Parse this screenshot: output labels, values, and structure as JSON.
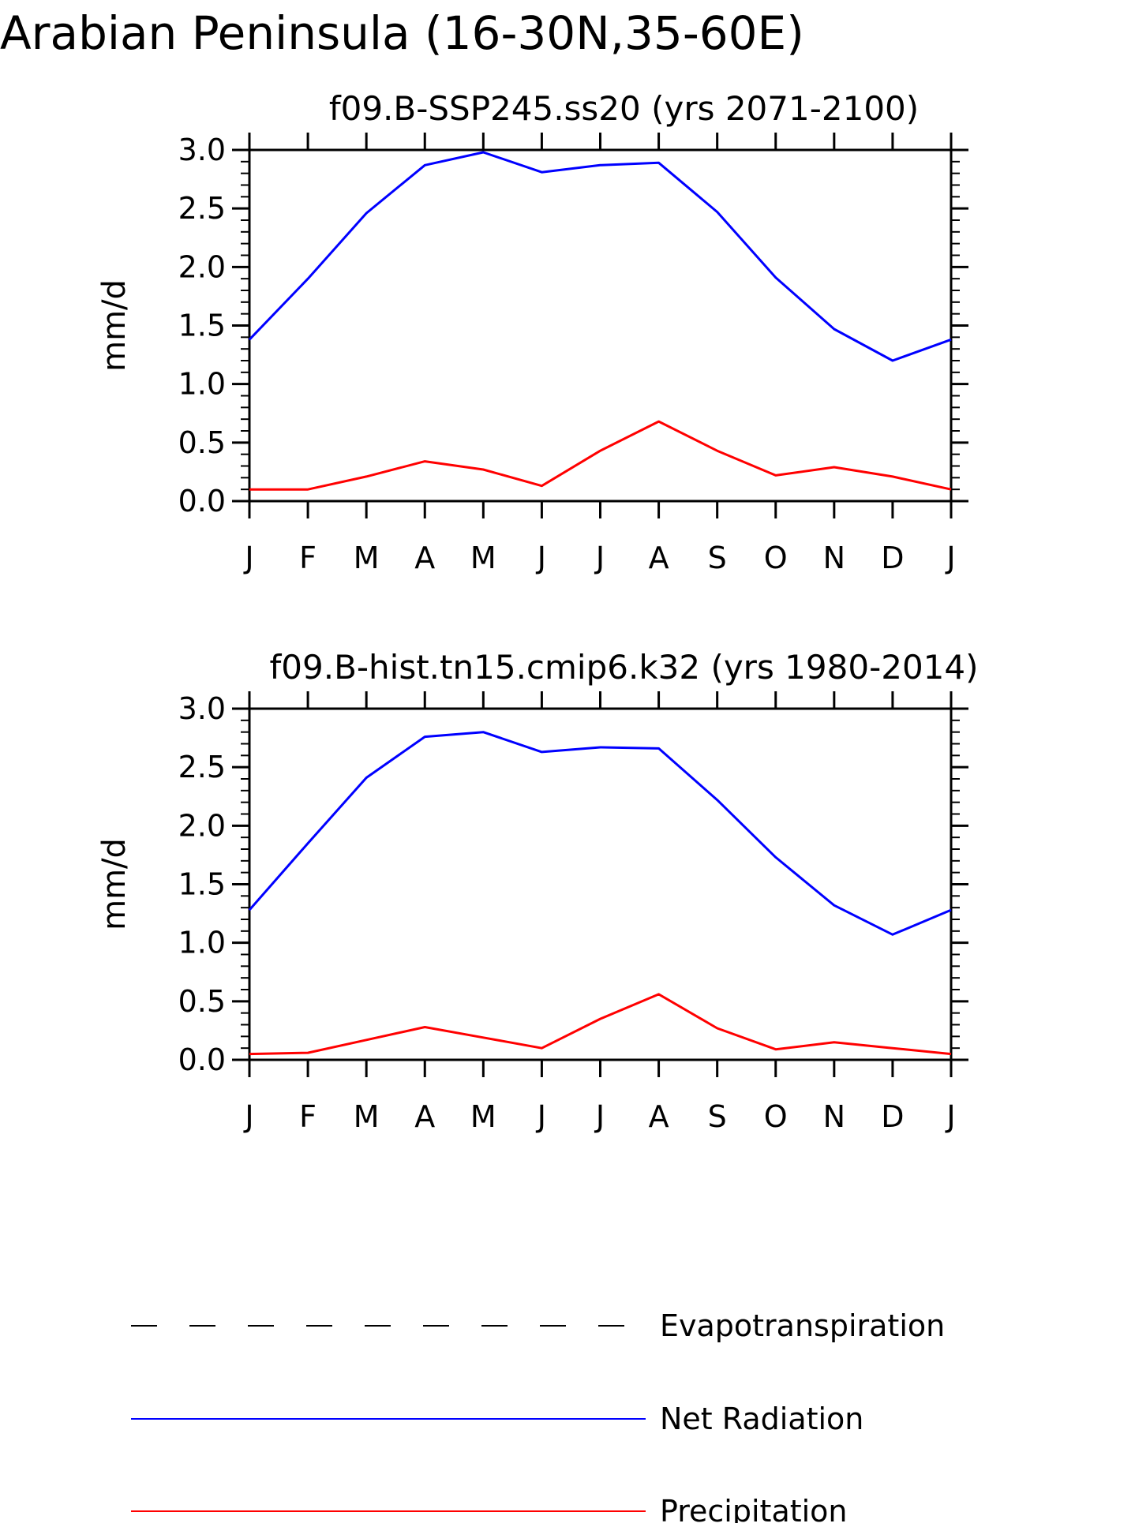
{
  "figure": {
    "title": "Arabian Peninsula (16-30N,35-60E)"
  },
  "chart_data": [
    {
      "type": "line",
      "title": "f09.B-SSP245.ss20 (yrs 2071-2100)",
      "xlabel": "",
      "ylabel": "mm/d",
      "ylim": [
        0,
        3.0
      ],
      "yticks": [
        "0.0",
        "0.5",
        "1.0",
        "1.5",
        "2.0",
        "2.5",
        "3.0"
      ],
      "categories": [
        "J",
        "F",
        "M",
        "A",
        "M",
        "J",
        "J",
        "A",
        "S",
        "O",
        "N",
        "D",
        "J"
      ],
      "grid": false,
      "series": [
        {
          "name": "Net Radiation",
          "color": "#0000ff",
          "values": [
            1.38,
            1.9,
            2.46,
            2.87,
            2.98,
            2.81,
            2.87,
            2.89,
            2.47,
            1.91,
            1.47,
            1.2,
            1.38
          ]
        },
        {
          "name": "Precipitation",
          "color": "#ff0000",
          "values": [
            0.1,
            0.1,
            0.21,
            0.34,
            0.27,
            0.13,
            0.43,
            0.68,
            0.43,
            0.22,
            0.29,
            0.21,
            0.1
          ]
        }
      ]
    },
    {
      "type": "line",
      "title": "f09.B-hist.tn15.cmip6.k32 (yrs 1980-2014)",
      "xlabel": "",
      "ylabel": "mm/d",
      "ylim": [
        0,
        3.0
      ],
      "yticks": [
        "0.0",
        "0.5",
        "1.0",
        "1.5",
        "2.0",
        "2.5",
        "3.0"
      ],
      "categories": [
        "J",
        "F",
        "M",
        "A",
        "M",
        "J",
        "J",
        "A",
        "S",
        "O",
        "N",
        "D",
        "J"
      ],
      "grid": false,
      "series": [
        {
          "name": "Net Radiation",
          "color": "#0000ff",
          "values": [
            1.28,
            1.85,
            2.41,
            2.76,
            2.8,
            2.63,
            2.67,
            2.66,
            2.22,
            1.73,
            1.32,
            1.07,
            1.28
          ]
        },
        {
          "name": "Precipitation",
          "color": "#ff0000",
          "values": [
            0.05,
            0.06,
            0.17,
            0.28,
            0.19,
            0.1,
            0.35,
            0.56,
            0.27,
            0.09,
            0.15,
            0.1,
            0.05
          ]
        }
      ]
    }
  ],
  "legend": {
    "position": "bottom",
    "items": [
      {
        "label": "Evapotranspiration",
        "color": "#000000",
        "style": "dashed"
      },
      {
        "label": "Net Radiation",
        "color": "#0000ff",
        "style": "solid"
      },
      {
        "label": "Precipitation",
        "color": "#ff0000",
        "style": "solid"
      }
    ]
  }
}
